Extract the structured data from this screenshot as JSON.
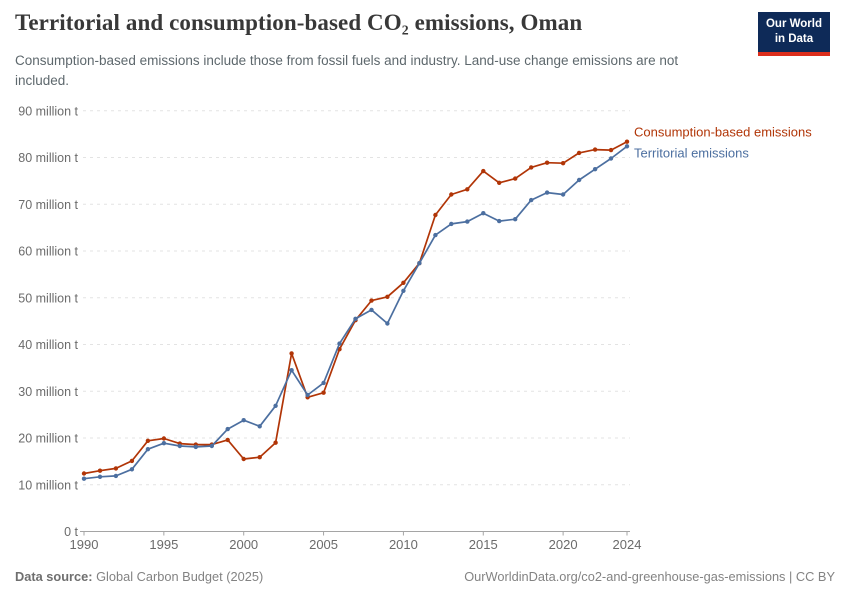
{
  "header": {
    "title": "Territorial and consumption-based CO₂ emissions, Oman",
    "subtitle": "Consumption-based emissions include those from fossil fuels and industry. Land-use change emissions are not included.",
    "logo": {
      "line1": "Our World",
      "line2": "in Data"
    }
  },
  "footer": {
    "source_label": "Data source:",
    "source_text": " Global Carbon Budget (2025)",
    "attribution": "OurWorldinData.org/co2-and-greenhouse-gas-emissions | CC BY"
  },
  "colors": {
    "consumption": "#b13507",
    "territorial": "#4c6fa0",
    "grid": "#e3e3e3",
    "axis": "#a5a5a5",
    "tick_text": "#6b6b6b",
    "logo_bg": "#0e2a58",
    "logo_stripe": "#dc2e1c"
  },
  "chart_data": {
    "type": "line",
    "title": "Territorial and consumption-based CO₂ emissions, Oman",
    "x": [
      1990,
      1991,
      1992,
      1993,
      1994,
      1995,
      1996,
      1997,
      1998,
      1999,
      2000,
      2001,
      2002,
      2003,
      2004,
      2005,
      2006,
      2007,
      2008,
      2009,
      2010,
      2011,
      2012,
      2013,
      2014,
      2015,
      2016,
      2017,
      2018,
      2019,
      2020,
      2021,
      2022,
      2023,
      2024
    ],
    "series": [
      {
        "name": "Consumption-based emissions",
        "color": "#b13507",
        "label_offset": -5,
        "values": [
          12.4,
          13.0,
          13.5,
          15.1,
          19.4,
          19.9,
          18.8,
          18.6,
          18.6,
          19.6,
          15.5,
          15.9,
          19.0,
          38.1,
          28.7,
          29.7,
          39.0,
          45.2,
          49.4,
          50.2,
          53.2,
          57.4,
          67.7,
          72.1,
          73.2,
          77.1,
          74.6,
          75.5,
          77.9,
          78.9,
          78.8,
          81.0,
          81.7,
          81.6,
          83.4
        ]
      },
      {
        "name": "Territorial emissions",
        "color": "#4c6fa0",
        "label_offset": 11,
        "values": [
          11.3,
          11.7,
          11.9,
          13.3,
          17.6,
          18.9,
          18.3,
          18.1,
          18.3,
          21.9,
          23.8,
          22.5,
          26.9,
          34.5,
          29.2,
          31.8,
          40.2,
          45.5,
          47.4,
          44.5,
          51.5,
          57.4,
          63.4,
          65.8,
          66.3,
          68.1,
          66.4,
          66.8,
          70.9,
          72.5,
          72.1,
          75.2,
          77.5,
          79.8,
          82.4
        ]
      }
    ],
    "unit": "million t",
    "ylim": [
      0,
      90
    ],
    "xlim": [
      1990,
      2024
    ],
    "yticks": [
      0,
      10,
      20,
      30,
      40,
      50,
      60,
      70,
      80,
      90
    ],
    "ytick_labels": [
      "0 t",
      "10 million t",
      "20 million t",
      "30 million t",
      "40 million t",
      "50 million t",
      "60 million t",
      "70 million t",
      "80 million t",
      "90 million t"
    ],
    "xticks": [
      1990,
      1995,
      2000,
      2005,
      2010,
      2015,
      2020,
      2024
    ],
    "xtick_labels": [
      "1990",
      "1995",
      "2000",
      "2005",
      "2010",
      "2015",
      "2020",
      "2024"
    ],
    "grid": "horizontal-dashed",
    "legend_position": "labels-at-line-ends"
  }
}
